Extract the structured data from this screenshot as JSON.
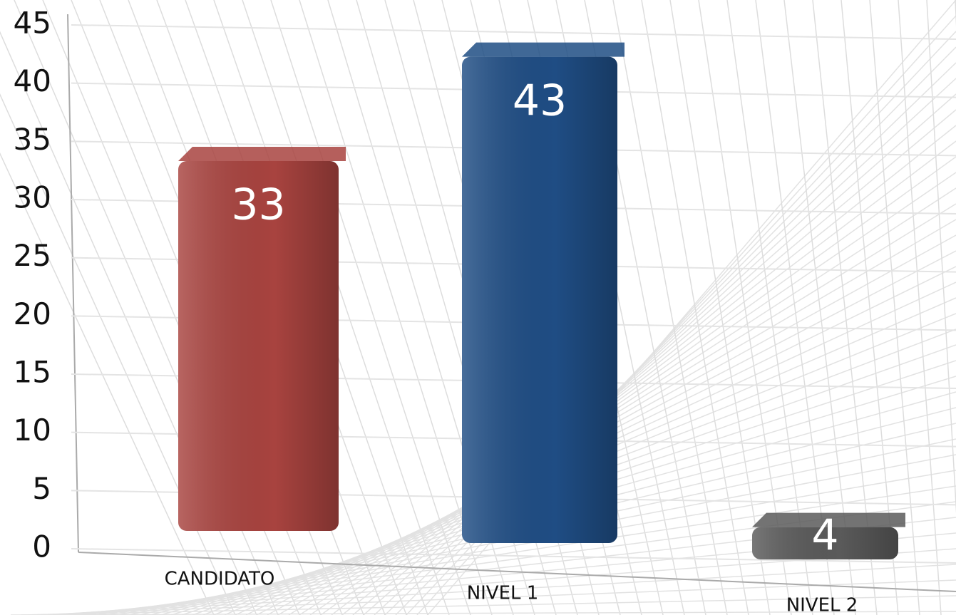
{
  "chart_data": {
    "type": "bar",
    "categories": [
      "CANDIDATO",
      "NIVEL 1",
      "NIVEL 2"
    ],
    "values": [
      33,
      43,
      4
    ],
    "colors": [
      "#a8433f",
      "#1f4d84",
      "#5a5a5a"
    ],
    "ylim": [
      0,
      45
    ],
    "yticks": [
      0,
      5,
      10,
      15,
      20,
      25,
      30,
      35,
      40,
      45
    ],
    "grid": true
  }
}
